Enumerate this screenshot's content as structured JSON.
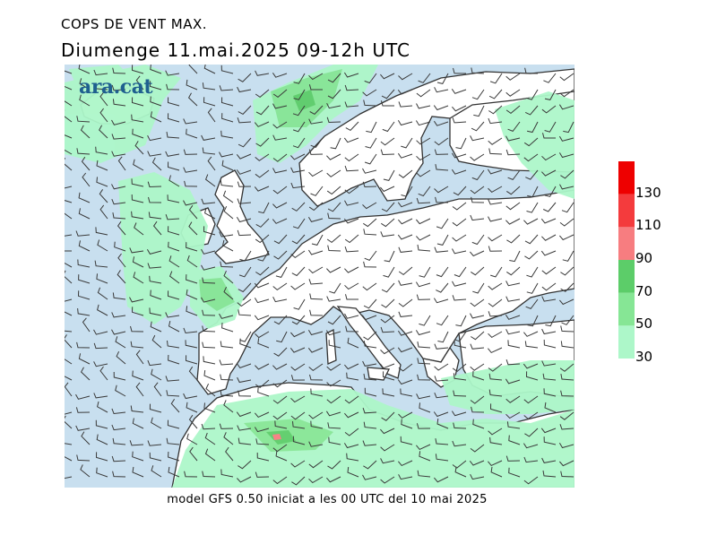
{
  "header": {
    "title": "COPS DE VENT MAX.",
    "subtitle": "Diumenge  11.mai.2025 09-12h UTC"
  },
  "footer": {
    "text": "model GFS 0.50 iniciat a les 00 UTC del 10 mai 2025"
  },
  "logo": {
    "text": "ara.cat"
  },
  "colors": {
    "sea": "#c8dfef",
    "land": "#ffffff",
    "coast": "#333333",
    "barb": "#3a3a3a"
  },
  "legend": {
    "bins": [
      {
        "from": 30,
        "to": 50,
        "color": "#adf7c9"
      },
      {
        "from": 50,
        "to": 70,
        "color": "#86e695"
      },
      {
        "from": 70,
        "to": 90,
        "color": "#5ccd69"
      },
      {
        "from": 90,
        "to": 110,
        "color": "#f77d80"
      },
      {
        "from": 110,
        "to": 130,
        "color": "#f43b3d"
      },
      {
        "from": 130,
        "to": 150,
        "color": "#ee0000"
      }
    ],
    "labels": [
      "30",
      "50",
      "70",
      "90",
      "110",
      "130"
    ]
  }
}
